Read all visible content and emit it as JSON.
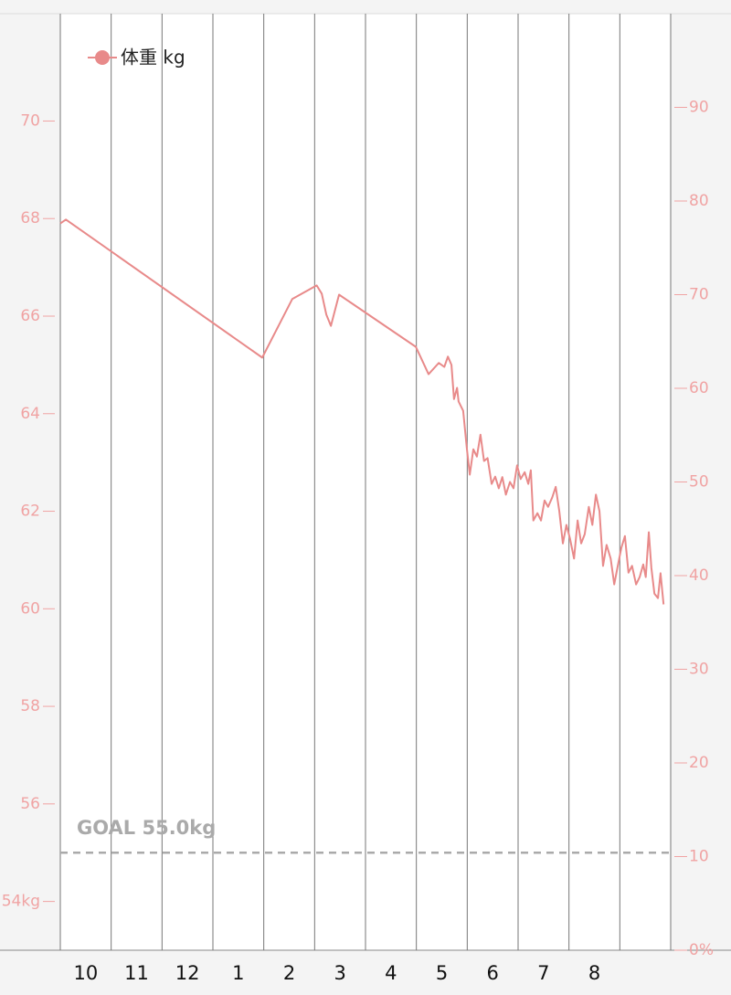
{
  "chart_data": {
    "type": "line",
    "categories": [
      "10",
      "11",
      "12",
      "1",
      "2",
      "3",
      "4",
      "5",
      "6",
      "7",
      "8",
      null
    ],
    "xlim": [
      0,
      12
    ],
    "ylim": [
      53,
      72.2
    ],
    "yticks": [
      {
        "value": 54,
        "label": "54kg"
      },
      56,
      58,
      60,
      62,
      64,
      66,
      68,
      70
    ],
    "y2lim": [
      0,
      100
    ],
    "y2ticks": [
      {
        "value": 0,
        "label": "0%"
      },
      10,
      20,
      30,
      40,
      50,
      60,
      70,
      80,
      90
    ],
    "goal": {
      "value": 55.0,
      "label": "GOAL 55.0kg"
    },
    "legend": "top-left",
    "series": [
      {
        "name": "体重 kg",
        "color": "#e88a8a",
        "x": [
          0,
          0.11,
          3.97,
          4.56,
          5.04,
          5.14,
          5.23,
          5.32,
          5.48,
          6.99,
          7.24,
          7.44,
          7.55,
          7.62,
          7.69,
          7.74,
          7.8,
          7.83,
          7.92,
          7.99,
          8.05,
          8.12,
          8.19,
          8.26,
          8.33,
          8.4,
          8.48,
          8.55,
          8.62,
          8.69,
          8.76,
          8.84,
          8.91,
          8.98,
          9.05,
          9.13,
          9.2,
          9.25,
          9.3,
          9.38,
          9.45,
          9.52,
          9.59,
          9.67,
          9.74,
          9.81,
          9.88,
          9.95,
          10.02,
          10.1,
          10.17,
          10.24,
          10.31,
          10.39,
          10.46,
          10.53,
          10.6,
          10.67,
          10.74,
          10.82,
          10.89,
          10.96,
          11.03,
          11.1,
          11.17,
          11.24,
          11.32,
          11.39,
          11.46,
          11.51,
          11.57,
          11.62,
          11.68,
          11.75,
          11.8,
          11.86
        ],
        "values": [
          67.9,
          67.98,
          65.15,
          66.35,
          66.63,
          66.46,
          66.03,
          65.8,
          66.44,
          65.37,
          64.81,
          65.04,
          64.96,
          65.17,
          65.0,
          64.3,
          64.53,
          64.25,
          64.06,
          63.31,
          62.75,
          63.27,
          63.12,
          63.57,
          63.03,
          63.09,
          62.56,
          62.71,
          62.47,
          62.7,
          62.34,
          62.6,
          62.47,
          62.94,
          62.66,
          62.8,
          62.56,
          62.84,
          61.81,
          61.96,
          61.81,
          62.22,
          62.09,
          62.28,
          62.5,
          62.0,
          61.34,
          61.72,
          61.44,
          61.03,
          61.81,
          61.34,
          61.53,
          62.09,
          61.72,
          62.34,
          62.0,
          60.88,
          61.31,
          61.03,
          60.5,
          60.88,
          61.25,
          61.49,
          60.74,
          60.88,
          60.5,
          60.65,
          60.91,
          60.65,
          61.57,
          60.84,
          60.31,
          60.22,
          60.73,
          60.09
        ]
      }
    ]
  }
}
